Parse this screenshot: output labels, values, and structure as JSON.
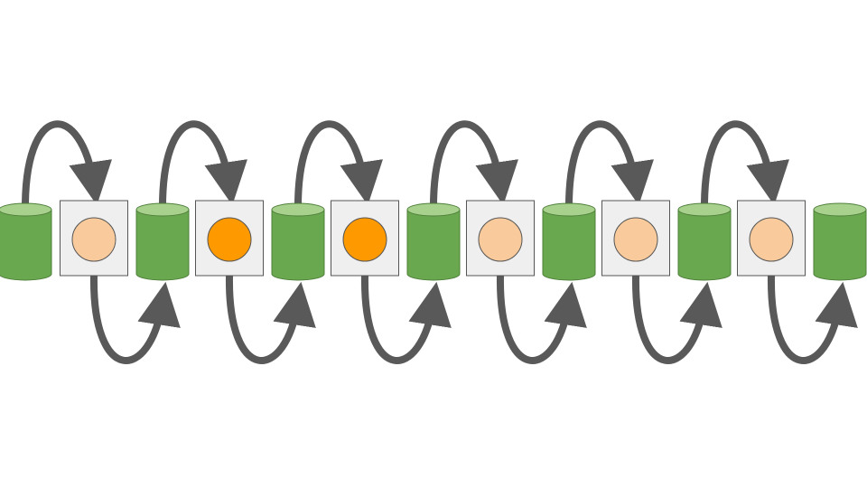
{
  "colors": {
    "background": "#ffffff",
    "cylinder_body": "#6aa84f",
    "cylinder_top": "#a9d18e",
    "cylinder_stroke": "#4e7f3a",
    "box_fill": "#efefef",
    "box_stroke": "#555555",
    "circle_light": "#f9cb9c",
    "circle_active": "#ff9900",
    "circle_stroke": "#555555",
    "arrow": "#595959"
  },
  "chain": {
    "cylinders": [
      {
        "id": "cyl-1"
      },
      {
        "id": "cyl-2"
      },
      {
        "id": "cyl-3"
      },
      {
        "id": "cyl-4"
      },
      {
        "id": "cyl-5"
      },
      {
        "id": "cyl-6"
      },
      {
        "id": "cyl-7"
      }
    ],
    "boxes": [
      {
        "id": "box-1",
        "state": "light"
      },
      {
        "id": "box-2",
        "state": "active"
      },
      {
        "id": "box-3",
        "state": "active"
      },
      {
        "id": "box-4",
        "state": "light"
      },
      {
        "id": "box-5",
        "state": "light"
      },
      {
        "id": "box-6",
        "state": "light"
      }
    ],
    "arrow_icon": "curved-arrow-icon"
  }
}
